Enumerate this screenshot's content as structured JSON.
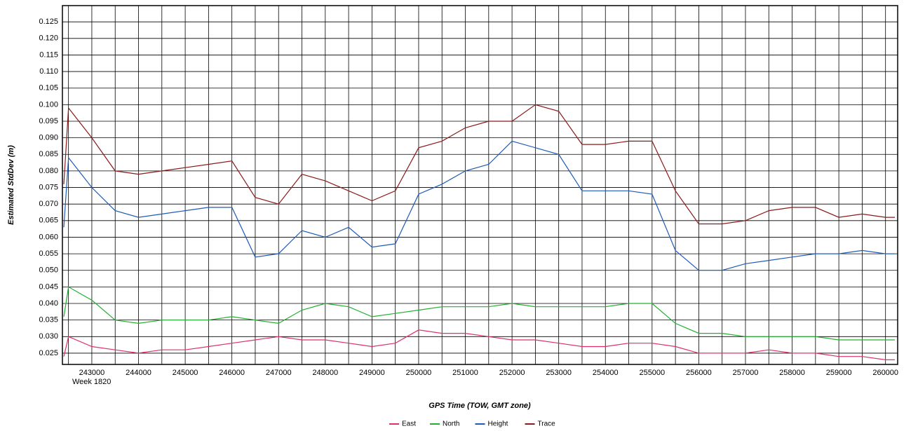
{
  "chart_data": {
    "type": "line",
    "x_label": "GPS Time (TOW, GMT zone)",
    "y_label": "Estimated StdDev (m)",
    "annotation": "Week 1820",
    "x": [
      242400,
      242500,
      243000,
      243500,
      244000,
      244500,
      245000,
      245500,
      246000,
      246500,
      247000,
      247500,
      248000,
      248500,
      249000,
      249500,
      250000,
      250500,
      251000,
      251500,
      252000,
      252500,
      253000,
      253500,
      254000,
      254500,
      255000,
      255500,
      256000,
      256500,
      257000,
      257500,
      258000,
      258500,
      259000,
      259500,
      260000,
      260200
    ],
    "series": [
      {
        "name": "East",
        "color": "#e0306a",
        "values": [
          0.024,
          0.03,
          0.027,
          0.026,
          0.025,
          0.026,
          0.026,
          0.027,
          0.028,
          0.029,
          0.03,
          0.029,
          0.029,
          0.028,
          0.027,
          0.028,
          0.032,
          0.031,
          0.031,
          0.03,
          0.029,
          0.029,
          0.028,
          0.027,
          0.027,
          0.028,
          0.028,
          0.027,
          0.025,
          0.025,
          0.025,
          0.026,
          0.025,
          0.025,
          0.024,
          0.024,
          0.023,
          0.023
        ]
      },
      {
        "name": "North",
        "color": "#22b030",
        "values": [
          0.036,
          0.045,
          0.041,
          0.035,
          0.034,
          0.035,
          0.035,
          0.035,
          0.036,
          0.035,
          0.034,
          0.038,
          0.04,
          0.039,
          0.036,
          0.037,
          0.038,
          0.039,
          0.039,
          0.039,
          0.04,
          0.039,
          0.039,
          0.039,
          0.039,
          0.04,
          0.04,
          0.034,
          0.031,
          0.031,
          0.03,
          0.03,
          0.03,
          0.03,
          0.029,
          0.029,
          0.029,
          0.029
        ]
      },
      {
        "name": "Height",
        "color": "#1e5bb8",
        "values": [
          0.063,
          0.084,
          0.075,
          0.068,
          0.066,
          0.067,
          0.068,
          0.069,
          0.069,
          0.054,
          0.055,
          0.062,
          0.06,
          0.063,
          0.057,
          0.058,
          0.073,
          0.076,
          0.08,
          0.082,
          0.089,
          0.087,
          0.085,
          0.074,
          0.074,
          0.074,
          0.073,
          0.056,
          0.05,
          0.05,
          0.052,
          0.053,
          0.054,
          0.055,
          0.055,
          0.056,
          0.055,
          0.055
        ]
      },
      {
        "name": "Trace",
        "color": "#8b1a1a",
        "values": [
          0.076,
          0.099,
          0.09,
          0.08,
          0.079,
          0.08,
          0.081,
          0.082,
          0.083,
          0.072,
          0.07,
          0.079,
          0.077,
          0.074,
          0.071,
          0.074,
          0.087,
          0.089,
          0.093,
          0.095,
          0.095,
          0.1,
          0.098,
          0.088,
          0.088,
          0.089,
          0.089,
          0.074,
          0.064,
          0.064,
          0.065,
          0.068,
          0.069,
          0.069,
          0.066,
          0.067,
          0.066,
          0.066
        ]
      }
    ],
    "xlim": [
      242370,
      260260
    ],
    "ylim": [
      0.0216,
      0.1299
    ],
    "xticks": [
      243000,
      244000,
      245000,
      246000,
      247000,
      248000,
      249000,
      250000,
      251000,
      252000,
      253000,
      254000,
      255000,
      256000,
      257000,
      258000,
      259000,
      260000
    ],
    "xgrid": [
      242500,
      243500,
      244500,
      245500,
      246500,
      247500,
      248500,
      249500,
      250500,
      251500,
      252500,
      253500,
      254500,
      255500,
      256500,
      257500,
      258500,
      259500
    ],
    "yticks": [
      {
        "value": 0.025,
        "label": "0.025"
      },
      {
        "value": 0.03,
        "label": "0.030"
      },
      {
        "value": 0.035,
        "label": "0.035"
      },
      {
        "value": 0.04,
        "label": "0.040"
      },
      {
        "value": 0.045,
        "label": "0.045"
      },
      {
        "value": 0.05,
        "label": "0.050"
      },
      {
        "value": 0.055,
        "label": "0.055"
      },
      {
        "value": 0.06,
        "label": "0.060"
      },
      {
        "value": 0.065,
        "label": "0.065"
      },
      {
        "value": 0.07,
        "label": "0.070"
      },
      {
        "value": 0.075,
        "label": "0.075"
      },
      {
        "value": 0.08,
        "label": "0.080"
      },
      {
        "value": 0.085,
        "label": "0.085"
      },
      {
        "value": 0.09,
        "label": "0.090"
      },
      {
        "value": 0.095,
        "label": "0.095"
      },
      {
        "value": 0.1,
        "label": "0.100"
      },
      {
        "value": 0.105,
        "label": "0.105"
      },
      {
        "value": 0.11,
        "label": "0.110"
      },
      {
        "value": 0.115,
        "label": "0.115"
      },
      {
        "value": 0.12,
        "label": "0.120"
      },
      {
        "value": 0.125,
        "label": "0.125"
      }
    ],
    "grid": true,
    "legend": "bottom"
  }
}
